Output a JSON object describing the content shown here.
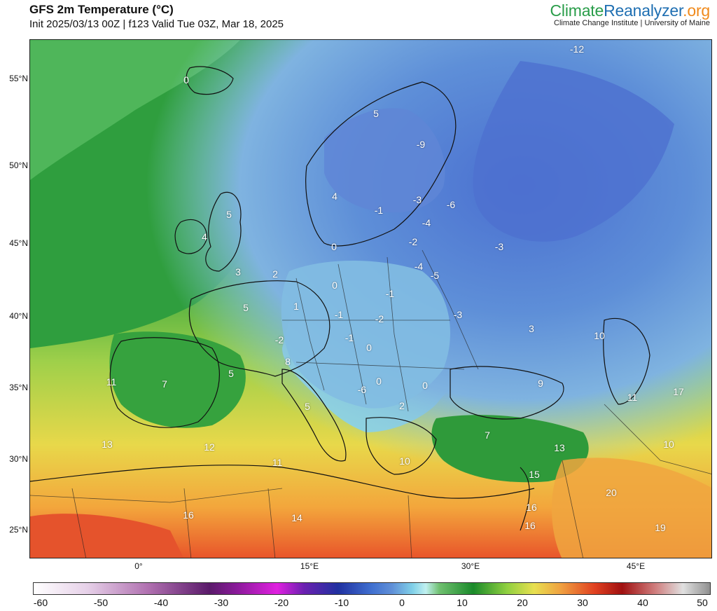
{
  "header": {
    "title": "GFS 2m Temperature (°C)",
    "subtitle": "Init 2025/03/13 00Z | f123 Valid Tue 03Z, Mar 18, 2025"
  },
  "brand": {
    "logo_part1": "Climate",
    "logo_part2": "Reanalyzer",
    "logo_part3": ".org",
    "tagline": "Climate Change Institute | University of Maine",
    "colors": {
      "green": "#2a9d4a",
      "blue": "#1f6fb2",
      "orange": "#f08a1c"
    }
  },
  "map": {
    "projection": "polar-stereographic Europe sector",
    "lat_ticks": [
      "55°N",
      "50°N",
      "45°N",
      "40°N",
      "35°N",
      "30°N",
      "25°N"
    ],
    "lon_ticks": [
      "0°",
      "15°E",
      "30°E",
      "45°E"
    ],
    "temperature_labels": [
      {
        "text": "0",
        "region": "Iceland"
      },
      {
        "text": "-12",
        "region": "Northern Russia"
      },
      {
        "text": "5",
        "region": "Norway coast"
      },
      {
        "text": "-9",
        "region": "Finland"
      },
      {
        "text": "4",
        "region": "Southern Norway"
      },
      {
        "text": "-1",
        "region": "Sweden"
      },
      {
        "text": "-3",
        "region": "Baltic"
      },
      {
        "text": "-6",
        "region": "Western Russia"
      },
      {
        "text": "5",
        "region": "Scotland"
      },
      {
        "text": "4",
        "region": "Ireland"
      },
      {
        "text": "-4",
        "region": "Latvia"
      },
      {
        "text": "0",
        "region": "Denmark"
      },
      {
        "text": "-2",
        "region": "Lithuania"
      },
      {
        "text": "-3",
        "region": "Central Russia"
      },
      {
        "text": "3",
        "region": "England"
      },
      {
        "text": "2",
        "region": "English Channel"
      },
      {
        "text": "-4",
        "region": "Belarus"
      },
      {
        "text": "-5",
        "region": "Belarus east"
      },
      {
        "text": "0",
        "region": "Germany"
      },
      {
        "text": "-1",
        "region": "Poland"
      },
      {
        "text": "5",
        "region": "France"
      },
      {
        "text": "1",
        "region": "Western Germany"
      },
      {
        "text": "-1",
        "region": "Czechia"
      },
      {
        "text": "-2",
        "region": "Southern Poland"
      },
      {
        "text": "-3",
        "region": "Ukraine"
      },
      {
        "text": "3",
        "region": "Southern Russia"
      },
      {
        "text": "10",
        "region": "Caspian"
      },
      {
        "text": "-2",
        "region": "Switzerland"
      },
      {
        "text": "-1",
        "region": "Austria"
      },
      {
        "text": "0",
        "region": "Hungary"
      },
      {
        "text": "8",
        "region": "Northern Italy"
      },
      {
        "text": "5",
        "region": "Gulf of Lion"
      },
      {
        "text": "9",
        "region": "Black Sea"
      },
      {
        "text": "11",
        "region": "Portugal"
      },
      {
        "text": "7",
        "region": "Spain"
      },
      {
        "text": "-6",
        "region": "Serbia"
      },
      {
        "text": "0",
        "region": "Bulgaria north"
      },
      {
        "text": "0",
        "region": "Romania"
      },
      {
        "text": "11",
        "region": "Georgia"
      },
      {
        "text": "17",
        "region": "Caspian south"
      },
      {
        "text": "5",
        "region": "Central Italy"
      },
      {
        "text": "2",
        "region": "Bulgaria"
      },
      {
        "text": "7",
        "region": "Turkey"
      },
      {
        "text": "13",
        "region": "Morocco"
      },
      {
        "text": "12",
        "region": "Algeria coast"
      },
      {
        "text": "13",
        "region": "Syria"
      },
      {
        "text": "10",
        "region": "Iran"
      },
      {
        "text": "11",
        "region": "Tunisia"
      },
      {
        "text": "10",
        "region": "Greece"
      },
      {
        "text": "15",
        "region": "Israel"
      },
      {
        "text": "20",
        "region": "Iraq"
      },
      {
        "text": "16",
        "region": "Algeria"
      },
      {
        "text": "14",
        "region": "Libya"
      },
      {
        "text": "16",
        "region": "Egypt coast"
      },
      {
        "text": "16",
        "region": "Sinai"
      },
      {
        "text": "19",
        "region": "Persian Gulf"
      }
    ]
  },
  "colorbar": {
    "ticks": [
      "-60",
      "-50",
      "-40",
      "-30",
      "-20",
      "-10",
      "0",
      "10",
      "20",
      "30",
      "40",
      "50"
    ],
    "min": -60,
    "max": 50
  }
}
